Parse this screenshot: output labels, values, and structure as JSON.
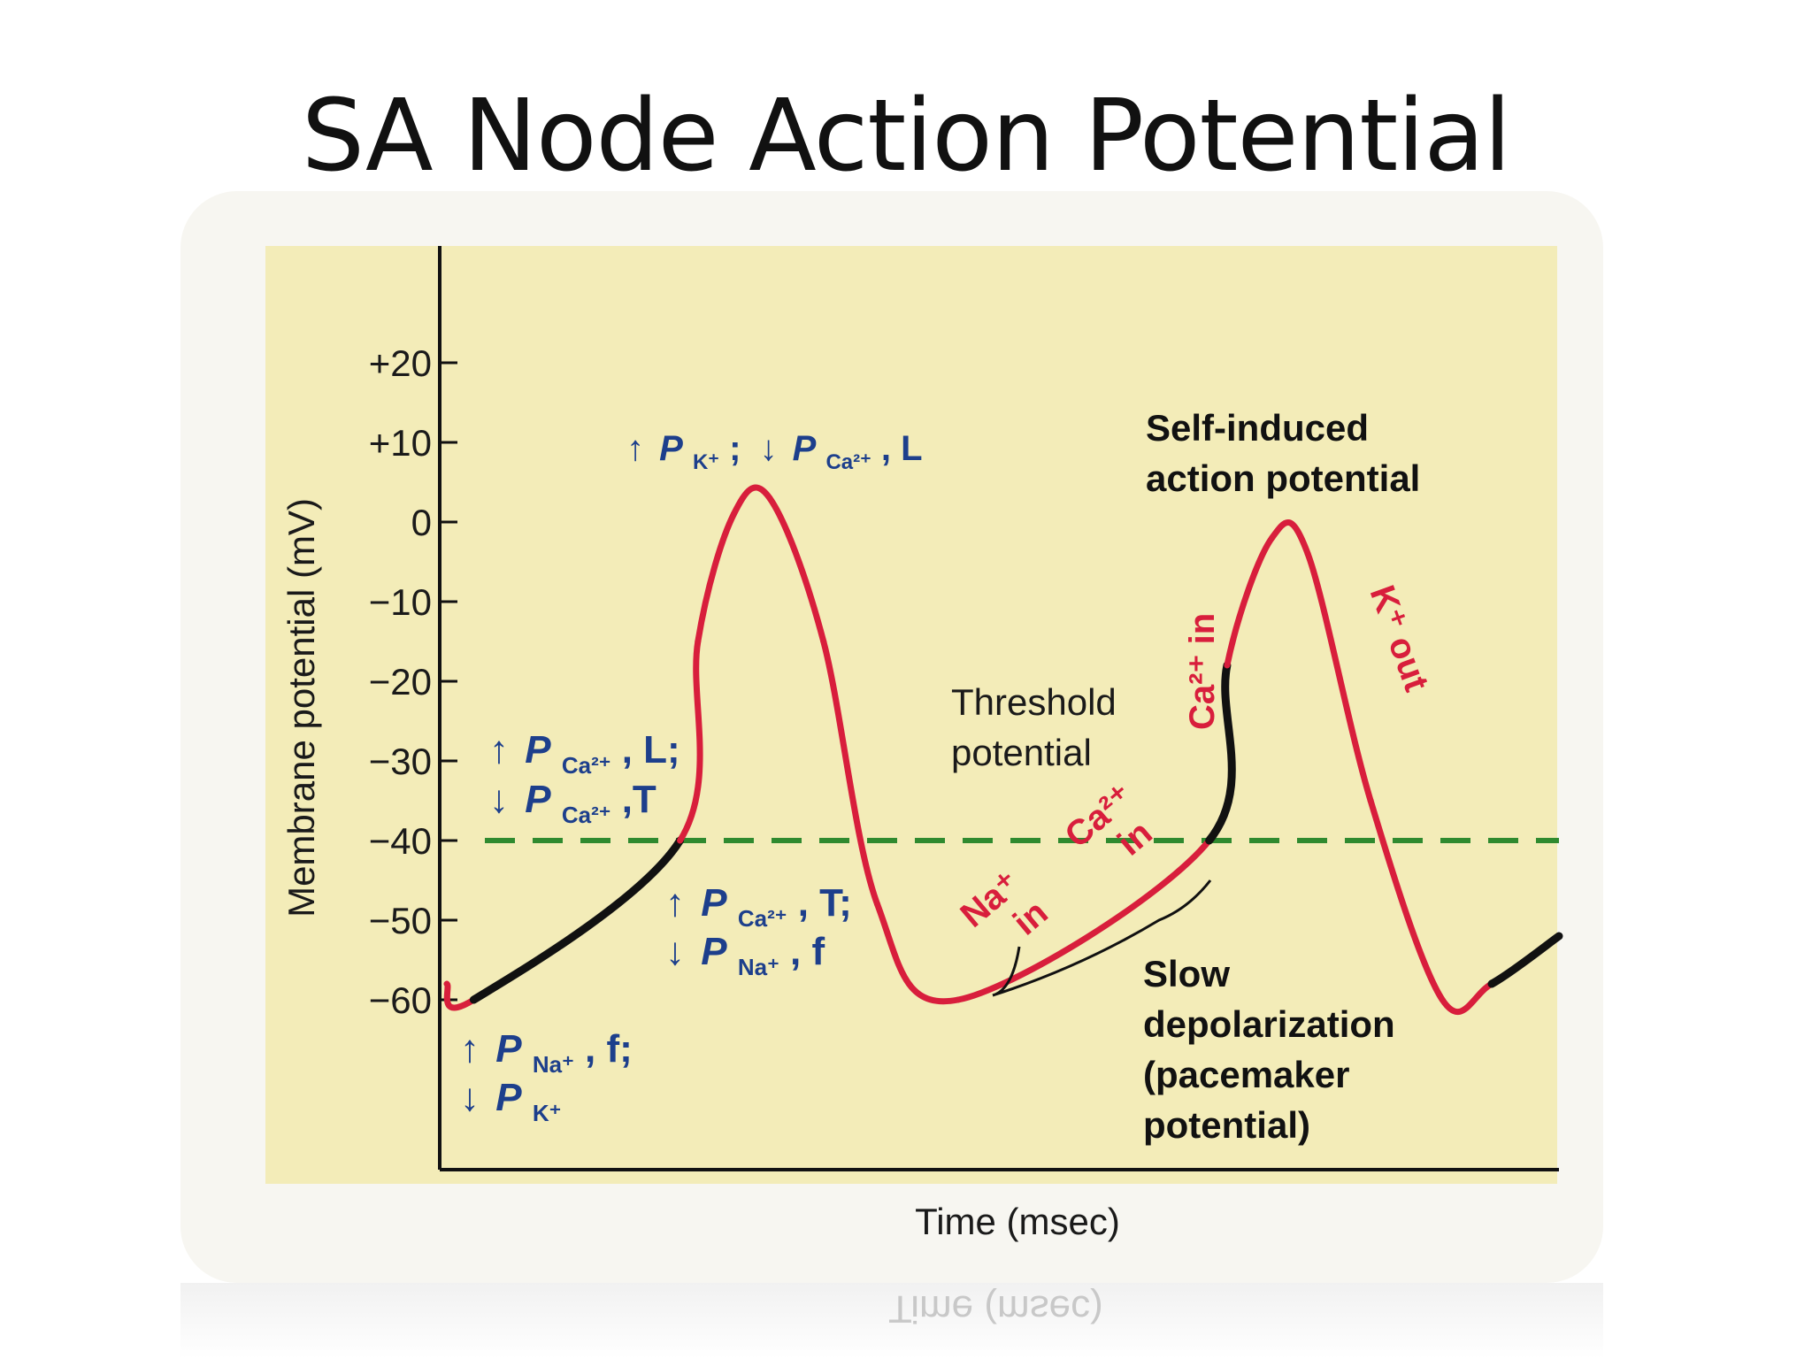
{
  "slide": {
    "title": "SA Node Action Potential"
  },
  "colors": {
    "trace_red": "#d81e3c",
    "trace_black": "#111111",
    "threshold_green": "#2f8a2f",
    "annotation_blue": "#1d3f8c",
    "label_red": "#d81e3c",
    "panel_yellow": "#f3ecb8"
  },
  "chart_data": {
    "type": "line",
    "title": "",
    "xlabel": "Time (msec)",
    "ylabel": "Membrane potential (mV)",
    "ylim": [
      -70,
      30
    ],
    "yticks": [
      "+20",
      "+10",
      "0",
      "−10",
      "−20",
      "−30",
      "−40",
      "−50",
      "−60"
    ],
    "ytick_values": [
      20,
      10,
      0,
      -10,
      -20,
      -30,
      -40,
      -50,
      -60
    ],
    "threshold_mV": -40,
    "series": [
      {
        "role": "trace",
        "points": [
          {
            "x": 0,
            "y": -58,
            "phase": "repolarization"
          },
          {
            "x": 30,
            "y": -60,
            "phase": "pacemaker"
          },
          {
            "x": 260,
            "y": -40,
            "phase": "depolarization"
          },
          {
            "x": 280,
            "y": -15,
            "phase": "depolarization"
          },
          {
            "x": 320,
            "y": 1,
            "phase": "depolarization"
          },
          {
            "x": 360,
            "y": 3,
            "phase": "repolarization"
          },
          {
            "x": 420,
            "y": -15,
            "phase": "repolarization"
          },
          {
            "x": 480,
            "y": -48,
            "phase": "repolarization"
          },
          {
            "x": 570,
            "y": -60,
            "phase": "repolarization"
          },
          {
            "x": 850,
            "y": -40,
            "phase": "pacemaker"
          },
          {
            "x": 870,
            "y": -18,
            "phase": "depolarization"
          },
          {
            "x": 920,
            "y": -2,
            "phase": "depolarization"
          },
          {
            "x": 960,
            "y": -4,
            "phase": "repolarization"
          },
          {
            "x": 1030,
            "y": -35,
            "phase": "repolarization"
          },
          {
            "x": 1110,
            "y": -60,
            "phase": "repolarization"
          },
          {
            "x": 1165,
            "y": -58,
            "phase": "pacemaker"
          },
          {
            "x": 1240,
            "y": -52,
            "phase": "pacemaker"
          }
        ]
      }
    ],
    "annotations": {
      "pk_up_pca_l_down": {
        "arrow_up": "↑",
        "p1": "P",
        "sub1": "K⁺",
        "sep": ";",
        "arrow_down": "↓",
        "p2": "P",
        "sub2": "Ca²⁺",
        "tail": ", L"
      },
      "pca_l_up_line": {
        "arrow": "↑",
        "p": "P",
        "sub": "Ca²⁺",
        "tail": ", L;"
      },
      "pca_t_down_line": {
        "arrow": "↓",
        "p": "P",
        "sub": "Ca²⁺",
        "tail": ",T"
      },
      "pca_t_up_line": {
        "arrow": "↑",
        "p": "P",
        "sub": "Ca²⁺",
        "tail": ", T;"
      },
      "pna_f_down_line": {
        "arrow": "↓",
        "p": "P",
        "sub": "Na⁺",
        "tail": ", f"
      },
      "pna_f_up_line": {
        "arrow": "↑",
        "p": "P",
        "sub": "Na⁺",
        "tail": ", f;"
      },
      "pk_down_line": {
        "arrow": "↓",
        "p": "P",
        "sub": "K⁺"
      },
      "self_induced": [
        "Self-induced",
        "action potential"
      ],
      "threshold": [
        "Threshold",
        "potential"
      ],
      "slow_depol": [
        "Slow",
        "depolarization",
        "(pacemaker",
        "potential)"
      ],
      "ca_in_vertical": "Ca²⁺ in",
      "k_out_vertical": "K⁺ out",
      "na_in": [
        "Na⁺",
        "in"
      ],
      "ca_in_diag": [
        "Ca²⁺",
        "in"
      ]
    }
  },
  "reflection": {
    "text": "Time (msec)"
  }
}
